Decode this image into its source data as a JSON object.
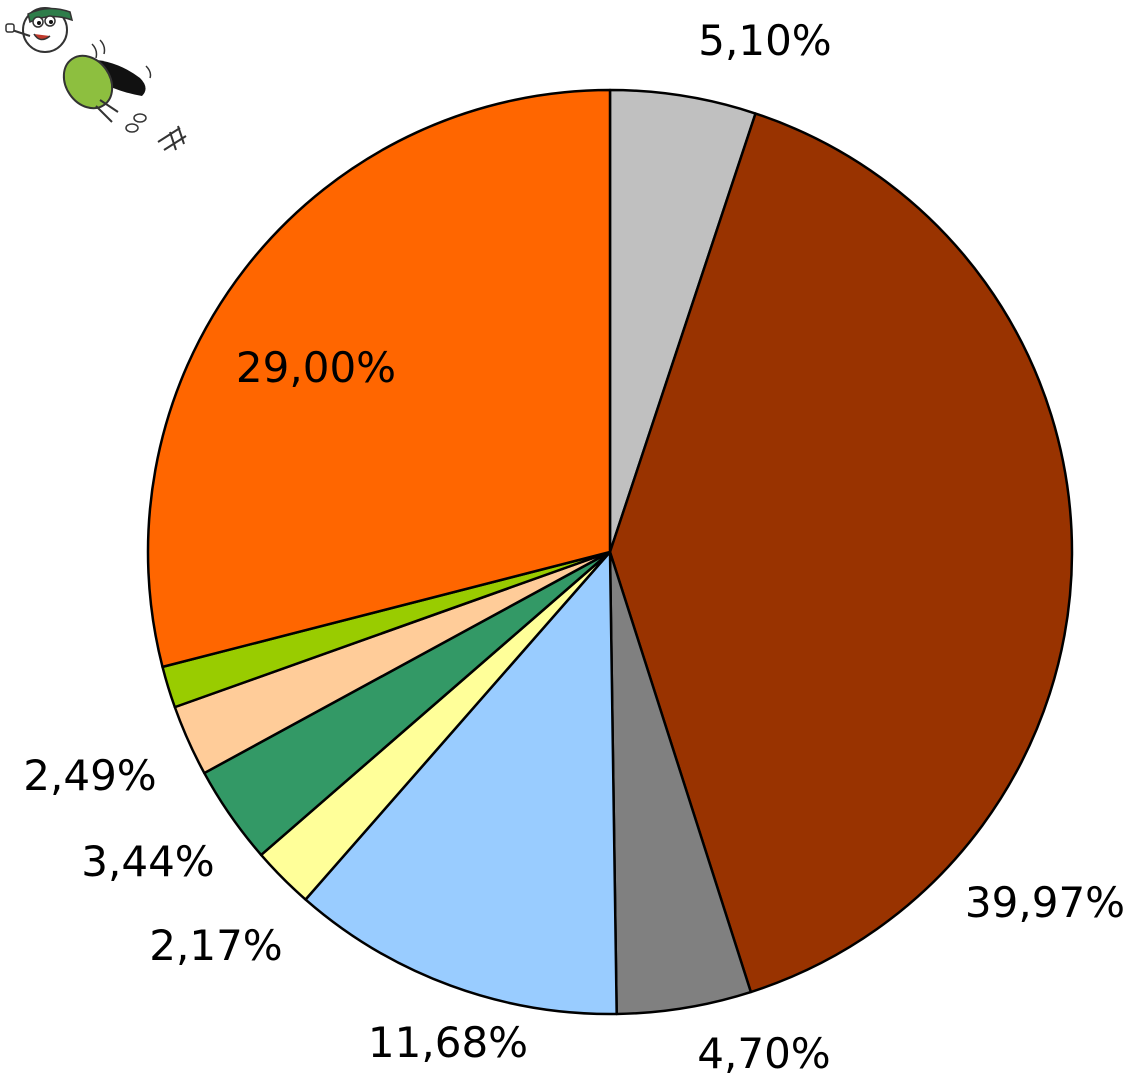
{
  "mascot": {
    "icon": "flying-caped-mascot-icon"
  },
  "chart_data": {
    "type": "pie",
    "start_angle_deg": 0,
    "direction": "clockwise",
    "slices": [
      {
        "value": 5.1,
        "label": "5,10%",
        "color": "#C0C0C0"
      },
      {
        "value": 39.97,
        "label": "39,97%",
        "color": "#993300"
      },
      {
        "value": 4.7,
        "label": "4,70%",
        "color": "#808080"
      },
      {
        "value": 11.68,
        "label": "11,68%",
        "color": "#99CCFF"
      },
      {
        "value": 2.17,
        "label": "2,17%",
        "color": "#FFFF99"
      },
      {
        "value": 3.44,
        "label": "3,44%",
        "color": "#339966"
      },
      {
        "value": 2.49,
        "label": "2,49%",
        "color": "#FFCC99"
      },
      {
        "value": 1.45,
        "label": "",
        "color": "#99CC00"
      },
      {
        "value": 29.0,
        "label": "29,00%",
        "color": "#FF6600"
      }
    ]
  }
}
